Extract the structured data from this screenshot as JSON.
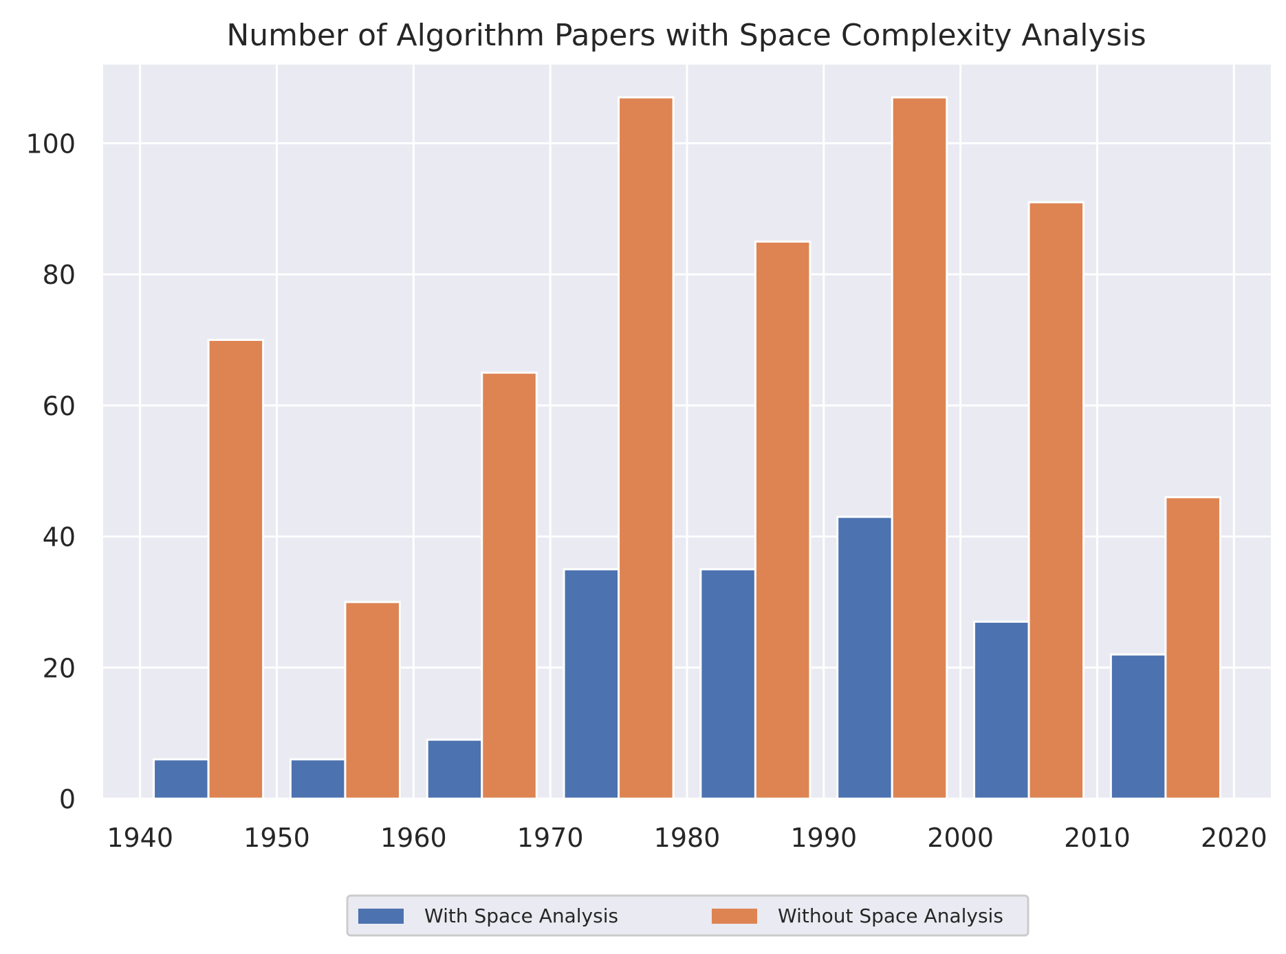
{
  "chart_data": {
    "type": "bar",
    "title": "Number of Algorithm Papers with Space Complexity Analysis",
    "xlabel": "",
    "ylabel": "",
    "x_ticks": [
      "1940",
      "1950",
      "1960",
      "1970",
      "1980",
      "1990",
      "2000",
      "2010",
      "2020"
    ],
    "y_ticks": [
      "0",
      "20",
      "40",
      "60",
      "80",
      "100"
    ],
    "xlim": [
      1937.3,
      2022.7
    ],
    "ylim": [
      0,
      112
    ],
    "grid": true,
    "legend_position": "bottom-center",
    "categories": [
      "1940",
      "1950",
      "1960",
      "1970",
      "1980",
      "1990",
      "2000",
      "2010"
    ],
    "bin_edges": [
      1940,
      1950,
      1960,
      1970,
      1980,
      1990,
      2000,
      2010,
      2020
    ],
    "series": [
      {
        "name": "With Space Analysis",
        "color": "#4c72b0",
        "values": [
          6,
          6,
          9,
          35,
          35,
          43,
          27,
          22
        ]
      },
      {
        "name": "Without Space Analysis",
        "color": "#dd8452",
        "values": [
          70,
          30,
          65,
          107,
          85,
          107,
          91,
          46
        ]
      }
    ],
    "plot_background": "#eaeaf2",
    "grid_color": "#ffffff"
  }
}
